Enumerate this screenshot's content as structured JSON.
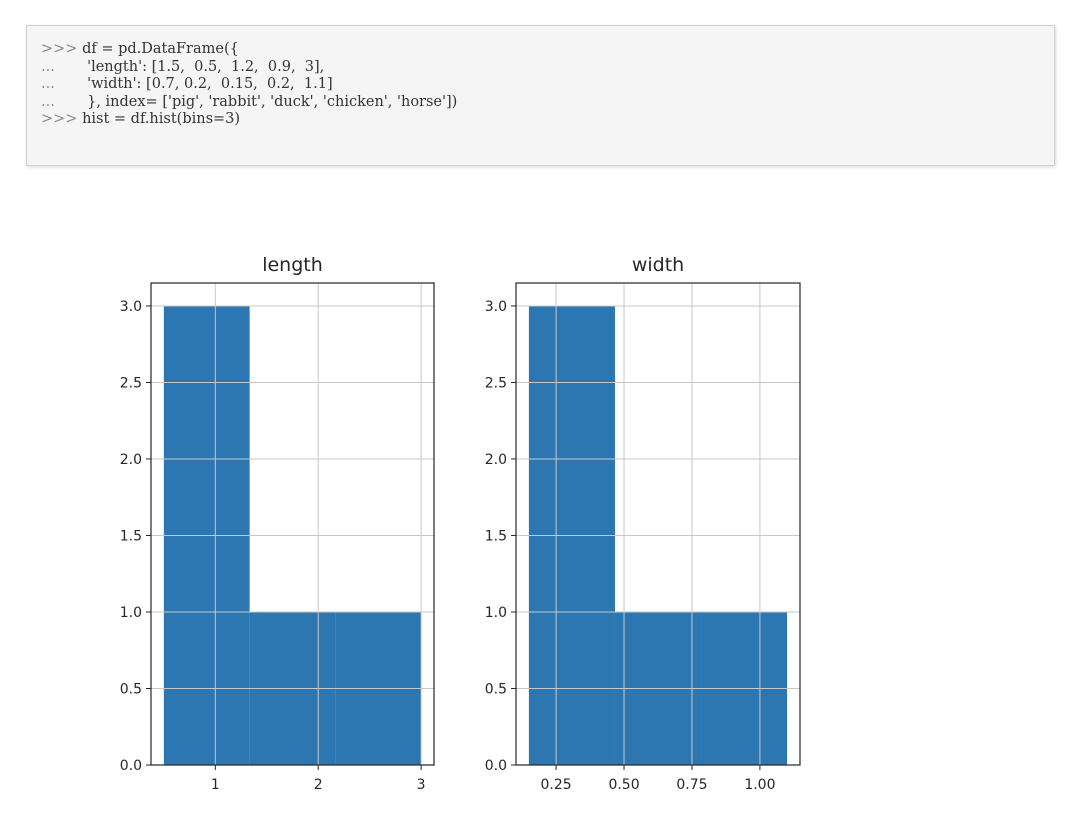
{
  "code": {
    "lines": [
      {
        "prompt": ">>> ",
        "text": "df = pd.DataFrame({"
      },
      {
        "prompt": "...       ",
        "text": "'length': [1.5,  0.5,  1.2,  0.9,  3],"
      },
      {
        "prompt": "...       ",
        "text": "'width': [0.7, 0.2,  0.15,  0.2,  1.1]"
      },
      {
        "prompt": "...       ",
        "text": "}, index= ['pig', 'rabbit', 'duck', 'chicken', 'horse'])"
      },
      {
        "prompt": ">>> ",
        "text": "hist = df.hist(bins=3)"
      }
    ]
  },
  "colors": {
    "bar": "#2c77b1",
    "grid": "#c8c8c8",
    "axis": "#262626"
  },
  "chart_data": [
    {
      "type": "bar",
      "title": "length",
      "bins": [
        [
          0.5,
          1.3333
        ],
        [
          1.3333,
          2.1667
        ],
        [
          2.1667,
          3.0
        ]
      ],
      "values": [
        3,
        1,
        1
      ],
      "xlim": [
        0.375,
        3.125
      ],
      "ylim": [
        0,
        3.15
      ],
      "xticks": [
        1,
        2,
        3
      ],
      "xtick_labels": [
        "1",
        "2",
        "3"
      ],
      "yticks": [
        0,
        0.5,
        1.0,
        1.5,
        2.0,
        2.5,
        3.0
      ],
      "ytick_labels": [
        "0.0",
        "0.5",
        "1.0",
        "1.5",
        "2.0",
        "2.5",
        "3.0"
      ],
      "grid": true
    },
    {
      "type": "bar",
      "title": "width",
      "bins": [
        [
          0.15,
          0.4667
        ],
        [
          0.4667,
          0.7833
        ],
        [
          0.7833,
          1.1
        ]
      ],
      "values": [
        3,
        1,
        1
      ],
      "xlim": [
        0.1025,
        1.1475
      ],
      "ylim": [
        0,
        3.15
      ],
      "xticks": [
        0.25,
        0.5,
        0.75,
        1.0
      ],
      "xtick_labels": [
        "0.25",
        "0.50",
        "0.75",
        "1.00"
      ],
      "yticks": [
        0,
        0.5,
        1.0,
        1.5,
        2.0,
        2.5,
        3.0
      ],
      "ytick_labels": [
        "0.0",
        "0.5",
        "1.0",
        "1.5",
        "2.0",
        "2.5",
        "3.0"
      ],
      "grid": true
    }
  ]
}
